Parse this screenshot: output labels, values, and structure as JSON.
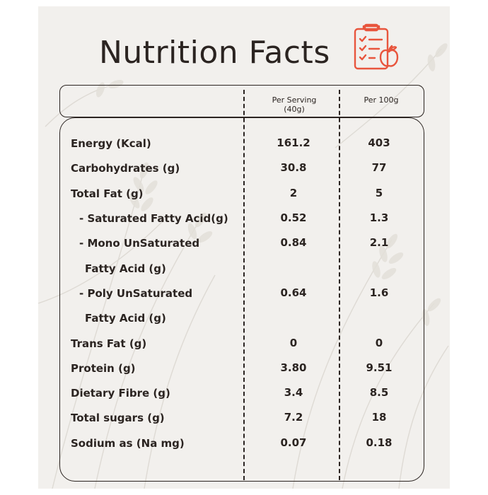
{
  "title": "Nutrition Facts",
  "icon": "clipboard-checklist-apple-icon",
  "accent_color": "#e8553d",
  "text_color": "#2b2421",
  "background_color": "#f2f0ed",
  "columns": {
    "per_serving": [
      "Per Serving",
      "(40g)"
    ],
    "per_100g": "Per 100g"
  },
  "rows": [
    {
      "label": [
        "Energy (Kcal)"
      ],
      "serving": "161.2",
      "per100": "403"
    },
    {
      "label": [
        "Carbohydrates (g)"
      ],
      "serving": "30.8",
      "per100": "77"
    },
    {
      "label": [
        "Total Fat (g)"
      ],
      "serving": "2",
      "per100": "5"
    },
    {
      "label": [
        "- Saturated Fatty Acid(g)"
      ],
      "serving": "0.52",
      "per100": "1.3"
    },
    {
      "label": [
        "- Mono UnSaturated",
        "Fatty Acid (g)"
      ],
      "serving": "0.84",
      "per100": "2.1"
    },
    {
      "label": [
        "- Poly UnSaturated",
        "Fatty Acid (g)"
      ],
      "serving": "0.64",
      "per100": "1.6"
    },
    {
      "label": [
        "Trans Fat (g)"
      ],
      "serving": "0",
      "per100": "0"
    },
    {
      "label": [
        "Protein (g)"
      ],
      "serving": "3.80",
      "per100": "9.51"
    },
    {
      "label": [
        "Dietary Fibre (g)"
      ],
      "serving": "3.4",
      "per100": "8.5"
    },
    {
      "label": [
        "Total sugars (g)"
      ],
      "serving": "7.2",
      "per100": "18"
    },
    {
      "label": [
        "Sodium as (Na mg)"
      ],
      "serving": "0.07",
      "per100": "0.18"
    }
  ]
}
